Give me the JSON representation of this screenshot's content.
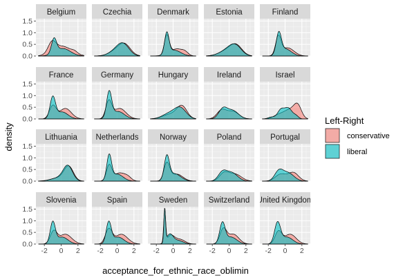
{
  "chart_data": {
    "type": "area",
    "subtype": "density",
    "facet_layout": "4x5 grid",
    "xlabel": "acceptance_for_ethnic_race_oblimin",
    "ylabel": "density",
    "x_ticks": [
      "-2",
      "0",
      "2"
    ],
    "y_ticks": [
      "0.0",
      "0.5",
      "1.0",
      "1.5"
    ],
    "xlim": [
      -3.0,
      3.0
    ],
    "ylim": [
      0,
      1.6
    ],
    "legend": {
      "title": "Left-Right",
      "position": "right",
      "entries": [
        {
          "name": "conservative",
          "color": "#F8766D"
        },
        {
          "name": "liberal",
          "color": "#00BFC4"
        }
      ]
    },
    "colors": {
      "conservative": "#F8766D",
      "liberal": "#00BFC4",
      "panel_bg": "#EBEBEB",
      "strip_bg": "#D9D9D9",
      "grid": "#FFFFFF"
    },
    "panels": [
      {
        "name": "Belgium",
        "conservative": [
          [
            -1.1,
            0.42,
            0.45
          ],
          [
            0.1,
            0.42,
            1.1
          ],
          [
            1.6,
            0.08,
            0.35
          ]
        ],
        "liberal": [
          [
            -0.85,
            0.62,
            0.3
          ],
          [
            0.2,
            0.32,
            0.9
          ]
        ]
      },
      {
        "name": "Czechia",
        "conservative": [
          [
            -0.2,
            0.2,
            0.8
          ],
          [
            0.9,
            0.47,
            0.7
          ]
        ],
        "liberal": [
          [
            -0.2,
            0.2,
            0.8
          ],
          [
            0.75,
            0.46,
            0.7
          ]
        ]
      },
      {
        "name": "Denmark",
        "conservative": [
          [
            -0.75,
            0.86,
            0.3
          ],
          [
            0.4,
            0.3,
            0.65
          ],
          [
            1.4,
            0.15,
            0.4
          ]
        ],
        "liberal": [
          [
            -0.75,
            0.9,
            0.26
          ],
          [
            0.1,
            0.25,
            0.8
          ]
        ]
      },
      {
        "name": "Estonia",
        "conservative": [
          [
            -0.3,
            0.22,
            0.9
          ],
          [
            0.85,
            0.42,
            0.7
          ]
        ],
        "liberal": [
          [
            -0.3,
            0.22,
            0.9
          ],
          [
            0.75,
            0.4,
            0.72
          ]
        ]
      },
      {
        "name": "Finland",
        "conservative": [
          [
            -0.8,
            0.78,
            0.32
          ],
          [
            0.3,
            0.35,
            0.75
          ]
        ],
        "liberal": [
          [
            -0.75,
            0.9,
            0.3
          ],
          [
            0.05,
            0.3,
            0.7
          ]
        ]
      },
      {
        "name": "France",
        "conservative": [
          [
            -1.0,
            0.55,
            0.4
          ],
          [
            0.5,
            0.45,
            0.7
          ]
        ],
        "liberal": [
          [
            -1.0,
            0.9,
            0.32
          ],
          [
            0.1,
            0.3,
            0.7
          ]
        ]
      },
      {
        "name": "Germany",
        "conservative": [
          [
            -1.0,
            0.72,
            0.35
          ],
          [
            0.3,
            0.45,
            0.75
          ]
        ],
        "liberal": [
          [
            -0.95,
            1.1,
            0.3
          ],
          [
            0.1,
            0.32,
            0.75
          ]
        ]
      },
      {
        "name": "Hungary",
        "conservative": [
          [
            -0.3,
            0.2,
            0.9
          ],
          [
            1.05,
            0.52,
            0.6
          ]
        ],
        "liberal": [
          [
            -0.5,
            0.22,
            0.8
          ],
          [
            0.85,
            0.46,
            0.7
          ]
        ]
      },
      {
        "name": "Ireland",
        "conservative": [
          [
            -0.9,
            0.36,
            0.55
          ],
          [
            0.45,
            0.32,
            0.7
          ]
        ],
        "liberal": [
          [
            -0.75,
            0.4,
            0.5
          ],
          [
            0.4,
            0.36,
            0.7
          ]
        ]
      },
      {
        "name": "Israel",
        "conservative": [
          [
            -0.6,
            0.2,
            0.7
          ],
          [
            0.6,
            0.34,
            0.6
          ],
          [
            1.5,
            0.55,
            0.45
          ]
        ],
        "liberal": [
          [
            -1.6,
            0.08,
            0.4
          ],
          [
            -0.5,
            0.38,
            0.4
          ],
          [
            0.4,
            0.45,
            0.45
          ],
          [
            1.3,
            0.12,
            0.3
          ]
        ]
      },
      {
        "name": "Lithuania",
        "conservative": [
          [
            -0.3,
            0.14,
            0.9
          ],
          [
            0.9,
            0.6,
            0.55
          ]
        ],
        "liberal": [
          [
            -0.3,
            0.14,
            0.9
          ],
          [
            0.8,
            0.62,
            0.55
          ]
        ]
      },
      {
        "name": "Netherlands",
        "conservative": [
          [
            -0.95,
            0.65,
            0.32
          ],
          [
            0.3,
            0.35,
            0.7
          ],
          [
            1.3,
            0.12,
            0.4
          ]
        ],
        "liberal": [
          [
            -0.95,
            1.05,
            0.28
          ],
          [
            0.0,
            0.3,
            0.7
          ]
        ]
      },
      {
        "name": "Norway",
        "conservative": [
          [
            -0.75,
            0.75,
            0.35
          ],
          [
            0.45,
            0.3,
            0.7
          ]
        ],
        "liberal": [
          [
            -0.75,
            0.98,
            0.3
          ],
          [
            0.15,
            0.32,
            0.75
          ]
        ]
      },
      {
        "name": "Poland",
        "conservative": [
          [
            -0.6,
            0.33,
            0.55
          ],
          [
            0.7,
            0.3,
            0.75
          ]
        ],
        "liberal": [
          [
            -0.8,
            0.35,
            0.5
          ],
          [
            0.3,
            0.36,
            0.7
          ]
        ]
      },
      {
        "name": "Portugal",
        "conservative": [
          [
            -0.5,
            0.3,
            0.65
          ],
          [
            1.0,
            0.36,
            0.6
          ]
        ],
        "liberal": [
          [
            -0.75,
            0.4,
            0.5
          ],
          [
            0.35,
            0.35,
            0.7
          ]
        ]
      },
      {
        "name": "Slovenia",
        "conservative": [
          [
            -0.9,
            0.52,
            0.4
          ],
          [
            0.5,
            0.42,
            0.75
          ]
        ],
        "liberal": [
          [
            -1.0,
            0.9,
            0.3
          ],
          [
            0.1,
            0.3,
            0.7
          ]
        ]
      },
      {
        "name": "Spain",
        "conservative": [
          [
            -1.0,
            0.62,
            0.4
          ],
          [
            0.5,
            0.42,
            0.75
          ]
        ],
        "liberal": [
          [
            -1.0,
            0.9,
            0.3
          ],
          [
            0.1,
            0.3,
            0.7
          ]
        ]
      },
      {
        "name": "Sweden",
        "conservative": [
          [
            -1.0,
            1.35,
            0.12
          ],
          [
            -0.3,
            0.35,
            0.45
          ],
          [
            0.8,
            0.2,
            0.6
          ]
        ],
        "liberal": [
          [
            -1.0,
            1.45,
            0.1
          ],
          [
            -0.4,
            0.4,
            0.4
          ],
          [
            0.6,
            0.15,
            0.6
          ]
        ]
      },
      {
        "name": "Switzerland",
        "conservative": [
          [
            -0.7,
            0.62,
            0.4
          ],
          [
            0.5,
            0.42,
            0.65
          ]
        ],
        "liberal": [
          [
            -0.8,
            0.85,
            0.32
          ],
          [
            0.2,
            0.3,
            0.7
          ]
        ]
      },
      {
        "name": "United Kingdom",
        "conservative": [
          [
            -0.8,
            0.52,
            0.4
          ],
          [
            0.6,
            0.42,
            0.7
          ]
        ],
        "liberal": [
          [
            -0.9,
            0.88,
            0.35
          ],
          [
            0.2,
            0.3,
            0.7
          ]
        ]
      }
    ]
  }
}
